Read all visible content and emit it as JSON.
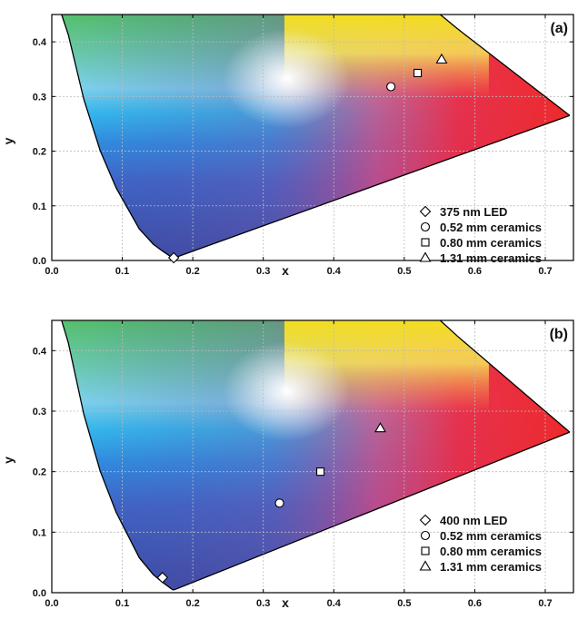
{
  "chart_data": [
    {
      "type": "scatter",
      "panel_label": "(a)",
      "xlabel": "x",
      "ylabel": "y",
      "xlim": [
        0.0,
        0.74
      ],
      "ylim": [
        0.0,
        0.45
      ],
      "x_ticks": [
        "0.0",
        "0.1",
        "0.2",
        "0.3",
        "0.4",
        "0.5",
        "0.6",
        "0.7"
      ],
      "y_ticks": [
        "0.0",
        "0.1",
        "0.2",
        "0.3",
        "0.4"
      ],
      "grid": true,
      "legend_position": "bottom-right",
      "series": [
        {
          "name": "375 nm LED",
          "marker": "diamond",
          "x": 0.173,
          "y": 0.005
        },
        {
          "name": "0.52 mm ceramics",
          "marker": "circle",
          "x": 0.481,
          "y": 0.318
        },
        {
          "name": "0.80 mm ceramics",
          "marker": "square",
          "x": 0.519,
          "y": 0.343
        },
        {
          "name": "1.31 mm ceramics",
          "marker": "triangle",
          "x": 0.553,
          "y": 0.368
        }
      ]
    },
    {
      "type": "scatter",
      "panel_label": "(b)",
      "xlabel": "x",
      "ylabel": "y",
      "xlim": [
        0.0,
        0.74
      ],
      "ylim": [
        0.0,
        0.45
      ],
      "x_ticks": [
        "0.0",
        "0.1",
        "0.2",
        "0.3",
        "0.4",
        "0.5",
        "0.6",
        "0.7"
      ],
      "y_ticks": [
        "0.0",
        "0.1",
        "0.2",
        "0.3",
        "0.4"
      ],
      "grid": true,
      "legend_position": "bottom-right",
      "series": [
        {
          "name": "400 nm LED",
          "marker": "diamond",
          "x": 0.157,
          "y": 0.025
        },
        {
          "name": "0.52 mm ceramics",
          "marker": "circle",
          "x": 0.323,
          "y": 0.148
        },
        {
          "name": "0.80 mm ceramics",
          "marker": "square",
          "x": 0.381,
          "y": 0.2
        },
        {
          "name": "1.31 mm ceramics",
          "marker": "triangle",
          "x": 0.466,
          "y": 0.272
        }
      ]
    }
  ],
  "colors": {
    "spectral_locus": "#000000",
    "marker_fill": "#ffffff",
    "grid": "#bbbbbb"
  }
}
